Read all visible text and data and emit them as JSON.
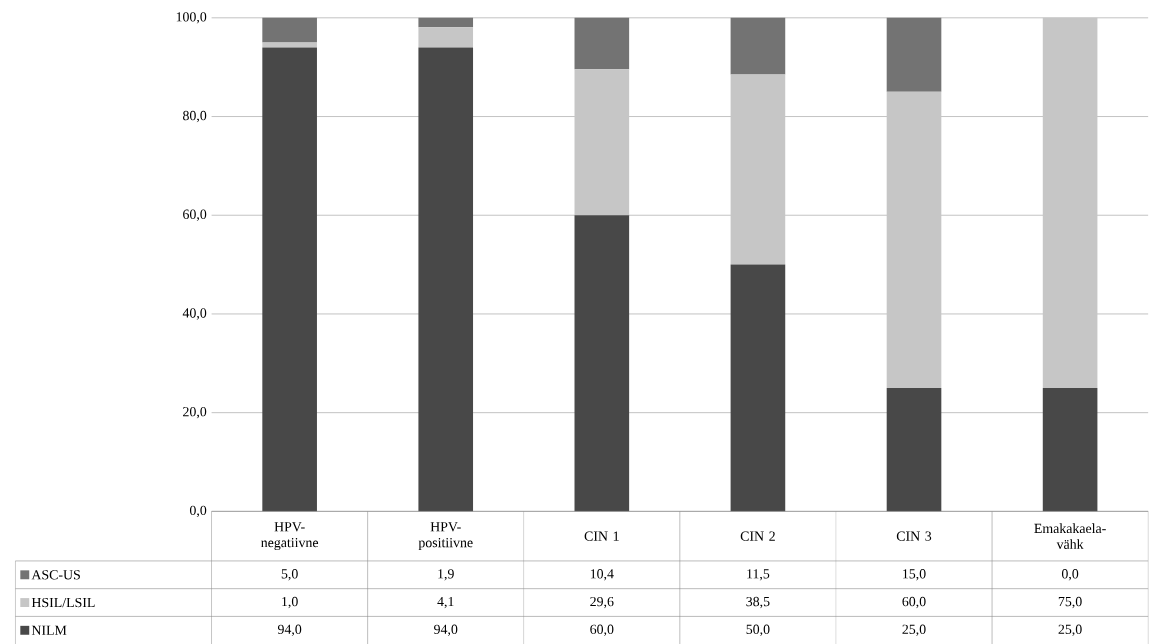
{
  "chart_data": {
    "type": "bar",
    "stacked": true,
    "grid": "y",
    "legend": "bottom",
    "categories": [
      "HPV-negatiivne",
      "HPV-positiivne",
      "CIN 1",
      "CIN 2",
      "CIN 3",
      "Emakakaela-vähk"
    ],
    "ylim": [
      0,
      100
    ],
    "yticks": [
      {
        "value": 0,
        "label": "0,0"
      },
      {
        "value": 20,
        "label": "20,0"
      },
      {
        "value": 40,
        "label": "40,0"
      },
      {
        "value": 60,
        "label": "60,0"
      },
      {
        "value": 80,
        "label": "80,0"
      },
      {
        "value": 100,
        "label": "100,0"
      }
    ],
    "series": [
      {
        "name": "NILM",
        "color": "#484848",
        "values": [
          94.0,
          94.0,
          60.0,
          50.0,
          25.0,
          25.0
        ],
        "value_labels": [
          "94,0",
          "94,0",
          "60,0",
          "50,0",
          "25,0",
          "25,0"
        ]
      },
      {
        "name": "HSIL/LSIL",
        "color": "#c6c6c6",
        "values": [
          1.0,
          4.1,
          29.6,
          38.5,
          60.0,
          75.0
        ],
        "value_labels": [
          "1,0",
          "4,1",
          "29,6",
          "38,5",
          "60,0",
          "75,0"
        ]
      },
      {
        "name": "ASC-US",
        "color": "#737373",
        "values": [
          5.0,
          1.9,
          10.4,
          11.5,
          15.0,
          0.0
        ],
        "value_labels": [
          "5,0",
          "1,9",
          "10,4",
          "11,5",
          "15,0",
          "0,0"
        ]
      }
    ]
  }
}
